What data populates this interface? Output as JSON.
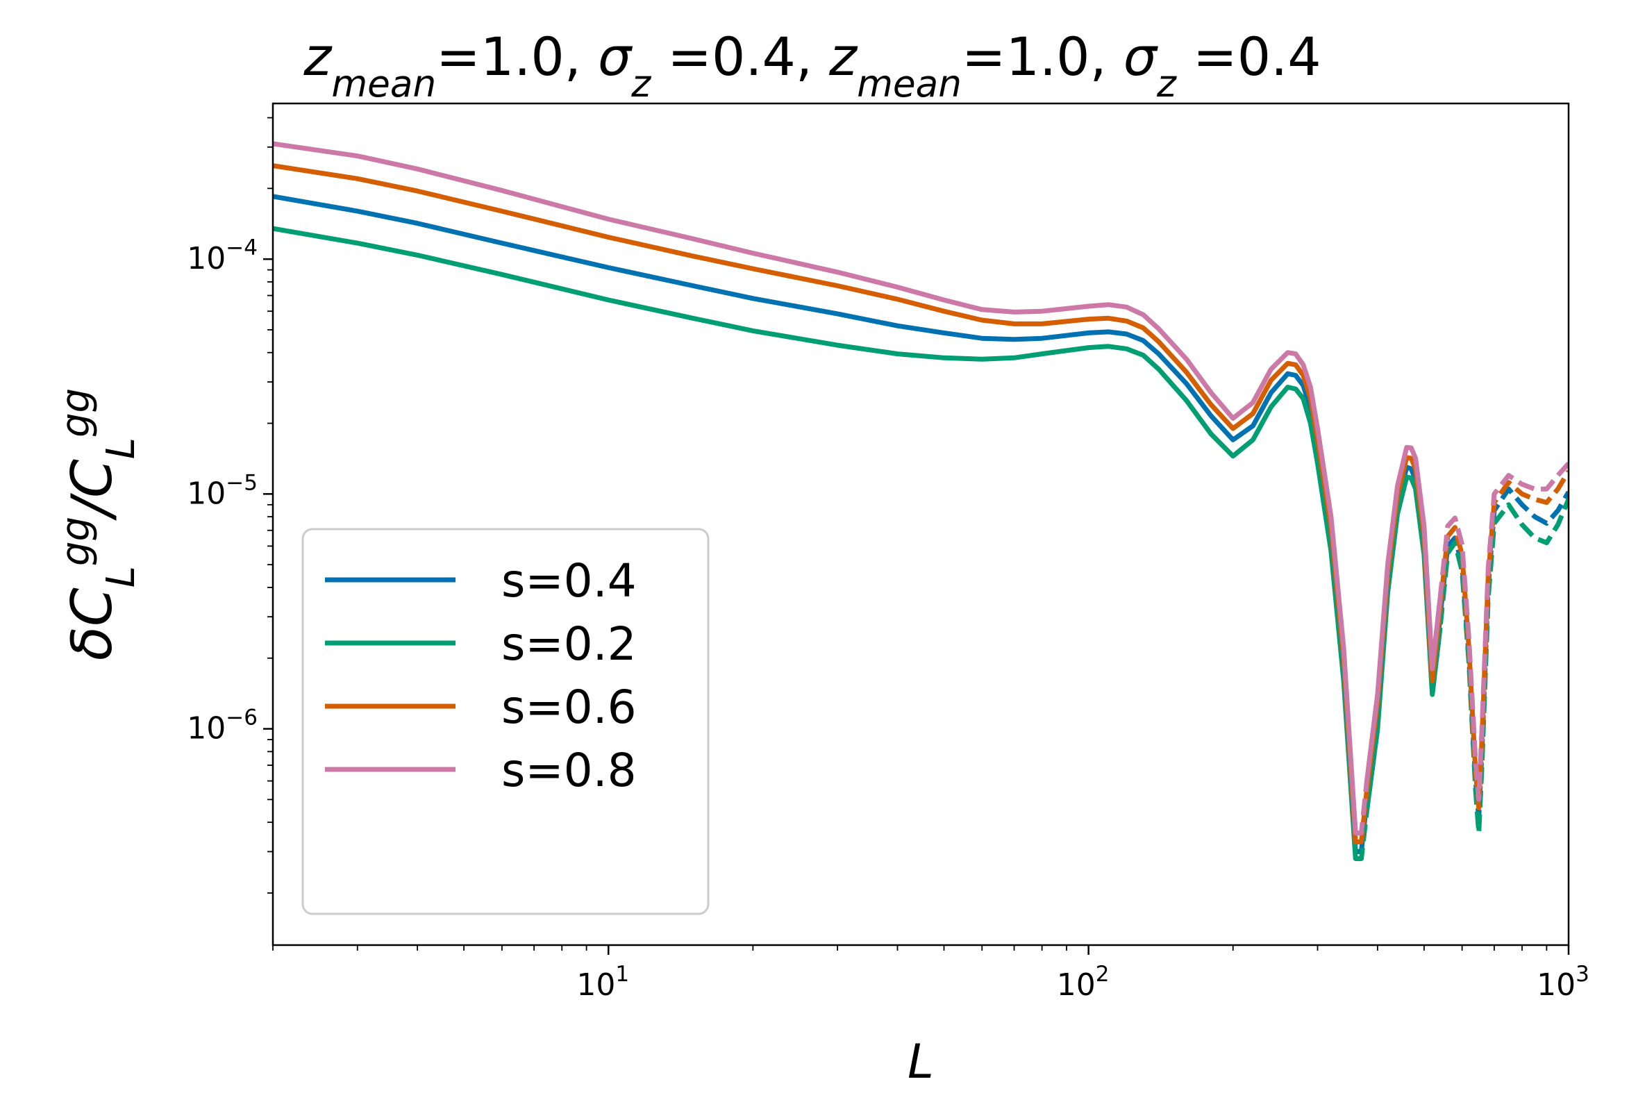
{
  "chart_data": {
    "type": "line",
    "title": {
      "parts": [
        {
          "t": "z",
          "italic": true
        },
        {
          "t": "mean",
          "italic": true,
          "sub": true
        },
        {
          "t": "=1.0, "
        },
        {
          "t": "σ",
          "italic": true
        },
        {
          "t": "z",
          "italic": true,
          "sub": true
        },
        {
          "t": " =0.4, "
        },
        {
          "t": "z",
          "italic": true
        },
        {
          "t": "mean",
          "italic": true,
          "sub": true
        },
        {
          "t": "=1.0, "
        },
        {
          "t": "σ",
          "italic": true
        },
        {
          "t": "z",
          "italic": true,
          "sub": true
        },
        {
          "t": " =0.4"
        }
      ]
    },
    "xlabel": "L",
    "ylabel": {
      "parts": [
        {
          "t": "δ",
          "italic": true
        },
        {
          "t": "C",
          "italic": true
        },
        {
          "t": "L",
          "italic": true,
          "sub": true
        },
        {
          "t": "gg",
          "italic": true,
          "sup": true
        },
        {
          "t": "/",
          "italic": true
        },
        {
          "t": "C",
          "italic": true
        },
        {
          "t": "L",
          "italic": true,
          "sub": true
        },
        {
          "t": "gg",
          "italic": true,
          "sup": true
        }
      ]
    },
    "xscale": "log",
    "yscale": "log",
    "xlim": [
      2,
      1000
    ],
    "ylim": [
      1.2e-07,
      0.00046
    ],
    "xticks": [
      {
        "value": 10,
        "base": "10",
        "exp": "1"
      },
      {
        "value": 100,
        "base": "10",
        "exp": "2"
      },
      {
        "value": 1000,
        "base": "10",
        "exp": "3"
      }
    ],
    "yticks": [
      {
        "value": 1e-06,
        "base": "10",
        "exp": "−6"
      },
      {
        "value": 1e-05,
        "base": "10",
        "exp": "−5"
      },
      {
        "value": 0.0001,
        "base": "10",
        "exp": "−4"
      }
    ],
    "legend_position": "lower-left",
    "note": "solid = positive values, dashed = |negative values|",
    "series": [
      {
        "name": "s=0.4",
        "color": "#0072B2",
        "scale": 1.0,
        "x": [
          2,
          3,
          4,
          6,
          10,
          15,
          20,
          30,
          40,
          50,
          60,
          70,
          80,
          100,
          110,
          120,
          130,
          140,
          160,
          180,
          200,
          220,
          240,
          260,
          270,
          280,
          290,
          300,
          320,
          340,
          360,
          370,
          380,
          400,
          420,
          440,
          460,
          470,
          480,
          500,
          520,
          540,
          560,
          580,
          600,
          620,
          640,
          650,
          660,
          680,
          700,
          750,
          800,
          850,
          900,
          950,
          1000
        ],
        "y": [
          0.000185,
          0.00016,
          0.000142,
          0.000117,
          9.2e-05,
          7.7e-05,
          6.8e-05,
          5.85e-05,
          5.2e-05,
          4.85e-05,
          4.6e-05,
          4.55e-05,
          4.6e-05,
          4.85e-05,
          4.9e-05,
          4.8e-05,
          4.5e-05,
          3.95e-05,
          2.95e-05,
          2.15e-05,
          1.7e-05,
          1.95e-05,
          2.7e-05,
          3.25e-05,
          3.2e-05,
          2.9e-05,
          2.3e-05,
          1.55e-05,
          6.5e-06,
          1.8e-06,
          3e-07,
          -3e-07,
          -5e-07,
          1.2e-06,
          4.2e-06,
          9e-06,
          1.3e-05,
          1.28e-05,
          1.15e-05,
          6e-06,
          1.5e-06,
          -3e-06,
          -6e-06,
          -6.5e-06,
          -5e-06,
          -2e-06,
          -6e-07,
          -4.2e-07,
          -8e-07,
          -4e-06,
          -8.5e-06,
          -1.05e-05,
          -9e-06,
          -8e-06,
          -7.5e-06,
          -8.5e-06,
          -1.02e-05
        ]
      },
      {
        "name": "s=0.2",
        "color": "#009E73",
        "scale": 0.73,
        "x": [
          2,
          3,
          4,
          6,
          10,
          15,
          20,
          30,
          40,
          50,
          60,
          70,
          80,
          100,
          110,
          120,
          130,
          140,
          160,
          180,
          200,
          220,
          240,
          260,
          270,
          280,
          290,
          300,
          320,
          340,
          360,
          370,
          380,
          400,
          420,
          440,
          460,
          470,
          480,
          500,
          520,
          540,
          560,
          580,
          600,
          620,
          640,
          650,
          660,
          680,
          700,
          750,
          800,
          850,
          900,
          950,
          1000
        ],
        "y": [
          0.000135,
          0.000117,
          0.000104,
          8.6e-05,
          6.7e-05,
          5.6e-05,
          4.95e-05,
          4.3e-05,
          3.95e-05,
          3.8e-05,
          3.75e-05,
          3.8e-05,
          3.95e-05,
          4.2e-05,
          4.25e-05,
          4.15e-05,
          3.9e-05,
          3.4e-05,
          2.5e-05,
          1.8e-05,
          1.45e-05,
          1.7e-05,
          2.35e-05,
          2.85e-05,
          2.8e-05,
          2.55e-05,
          2e-05,
          1.35e-05,
          5.7e-06,
          1.6e-06,
          2.8e-07,
          -2.8e-07,
          -4.5e-07,
          1e-06,
          3.8e-06,
          8.2e-06,
          1.18e-05,
          1.17e-05,
          1.05e-05,
          5.5e-06,
          1.4e-06,
          -2.7e-06,
          -5.6e-06,
          -6.2e-06,
          -4.7e-06,
          -1.9e-06,
          -5.5e-07,
          -3.6e-07,
          -7e-07,
          -3.6e-06,
          -7.5e-06,
          -9e-06,
          -7.4e-06,
          -6.5e-06,
          -6.2e-06,
          -7.4e-06,
          -9.5e-06
        ]
      },
      {
        "name": "s=0.6",
        "color": "#D55E00",
        "scale": 1.35,
        "x": [
          2,
          3,
          4,
          6,
          10,
          15,
          20,
          30,
          40,
          50,
          60,
          70,
          80,
          100,
          110,
          120,
          130,
          140,
          160,
          180,
          200,
          220,
          240,
          260,
          270,
          280,
          290,
          300,
          320,
          340,
          360,
          370,
          380,
          400,
          420,
          440,
          460,
          470,
          480,
          500,
          520,
          540,
          560,
          580,
          600,
          620,
          640,
          650,
          660,
          680,
          700,
          750,
          800,
          850,
          900,
          950,
          1000
        ],
        "y": [
          0.00025,
          0.00022,
          0.000195,
          0.00016,
          0.000124,
          0.000103,
          9.1e-05,
          7.7e-05,
          6.75e-05,
          6e-05,
          5.5e-05,
          5.3e-05,
          5.3e-05,
          5.55e-05,
          5.6e-05,
          5.45e-05,
          5.1e-05,
          4.45e-05,
          3.3e-05,
          2.4e-05,
          1.9e-05,
          2.2e-05,
          3.05e-05,
          3.6e-05,
          3.55e-05,
          3.2e-05,
          2.55e-05,
          1.7e-05,
          7.2e-06,
          2e-06,
          3.3e-07,
          -3.3e-07,
          -5.5e-07,
          1.3e-06,
          4.6e-06,
          9.8e-06,
          1.43e-05,
          1.42e-05,
          1.28e-05,
          6.6e-06,
          1.6e-06,
          -3.3e-06,
          -6.6e-06,
          -7.2e-06,
          -5.5e-06,
          -2.2e-06,
          -6.6e-07,
          -4.6e-07,
          -9e-07,
          -4.4e-06,
          -9.2e-06,
          -1.12e-05,
          -1e-05,
          -9.5e-06,
          -9.2e-06,
          -1.05e-05,
          -1.25e-05
        ]
      },
      {
        "name": "s=0.8",
        "color": "#CC79A7",
        "scale": 1.7,
        "x": [
          2,
          3,
          4,
          6,
          10,
          15,
          20,
          30,
          40,
          50,
          60,
          70,
          80,
          100,
          110,
          120,
          130,
          140,
          160,
          180,
          200,
          220,
          240,
          260,
          270,
          280,
          290,
          300,
          320,
          340,
          360,
          370,
          380,
          400,
          420,
          440,
          460,
          470,
          480,
          500,
          520,
          540,
          560,
          580,
          600,
          620,
          640,
          650,
          660,
          680,
          700,
          750,
          800,
          850,
          900,
          950,
          1000
        ],
        "y": [
          0.00031,
          0.000275,
          0.000242,
          0.000196,
          0.000148,
          0.000122,
          0.000106,
          8.8e-05,
          7.6e-05,
          6.7e-05,
          6.1e-05,
          5.95e-05,
          6e-05,
          6.3e-05,
          6.4e-05,
          6.25e-05,
          5.8e-05,
          5.05e-05,
          3.75e-05,
          2.7e-05,
          2.1e-05,
          2.45e-05,
          3.4e-05,
          4e-05,
          3.95e-05,
          3.55e-05,
          2.85e-05,
          1.9e-05,
          8e-06,
          2.2e-06,
          3.6e-07,
          -3.6e-07,
          -6e-07,
          1.4e-06,
          5e-06,
          1.08e-05,
          1.58e-05,
          1.57e-05,
          1.42e-05,
          7.3e-06,
          1.8e-06,
          -3.6e-06,
          -7.3e-06,
          -7.9e-06,
          -6.1e-06,
          -2.4e-06,
          -7.3e-07,
          -5e-07,
          -1e-06,
          -4.8e-06,
          -1e-05,
          -1.2e-05,
          -1.1e-05,
          -1.05e-05,
          -1.05e-05,
          -1.2e-05,
          -1.35e-05
        ]
      }
    ]
  }
}
